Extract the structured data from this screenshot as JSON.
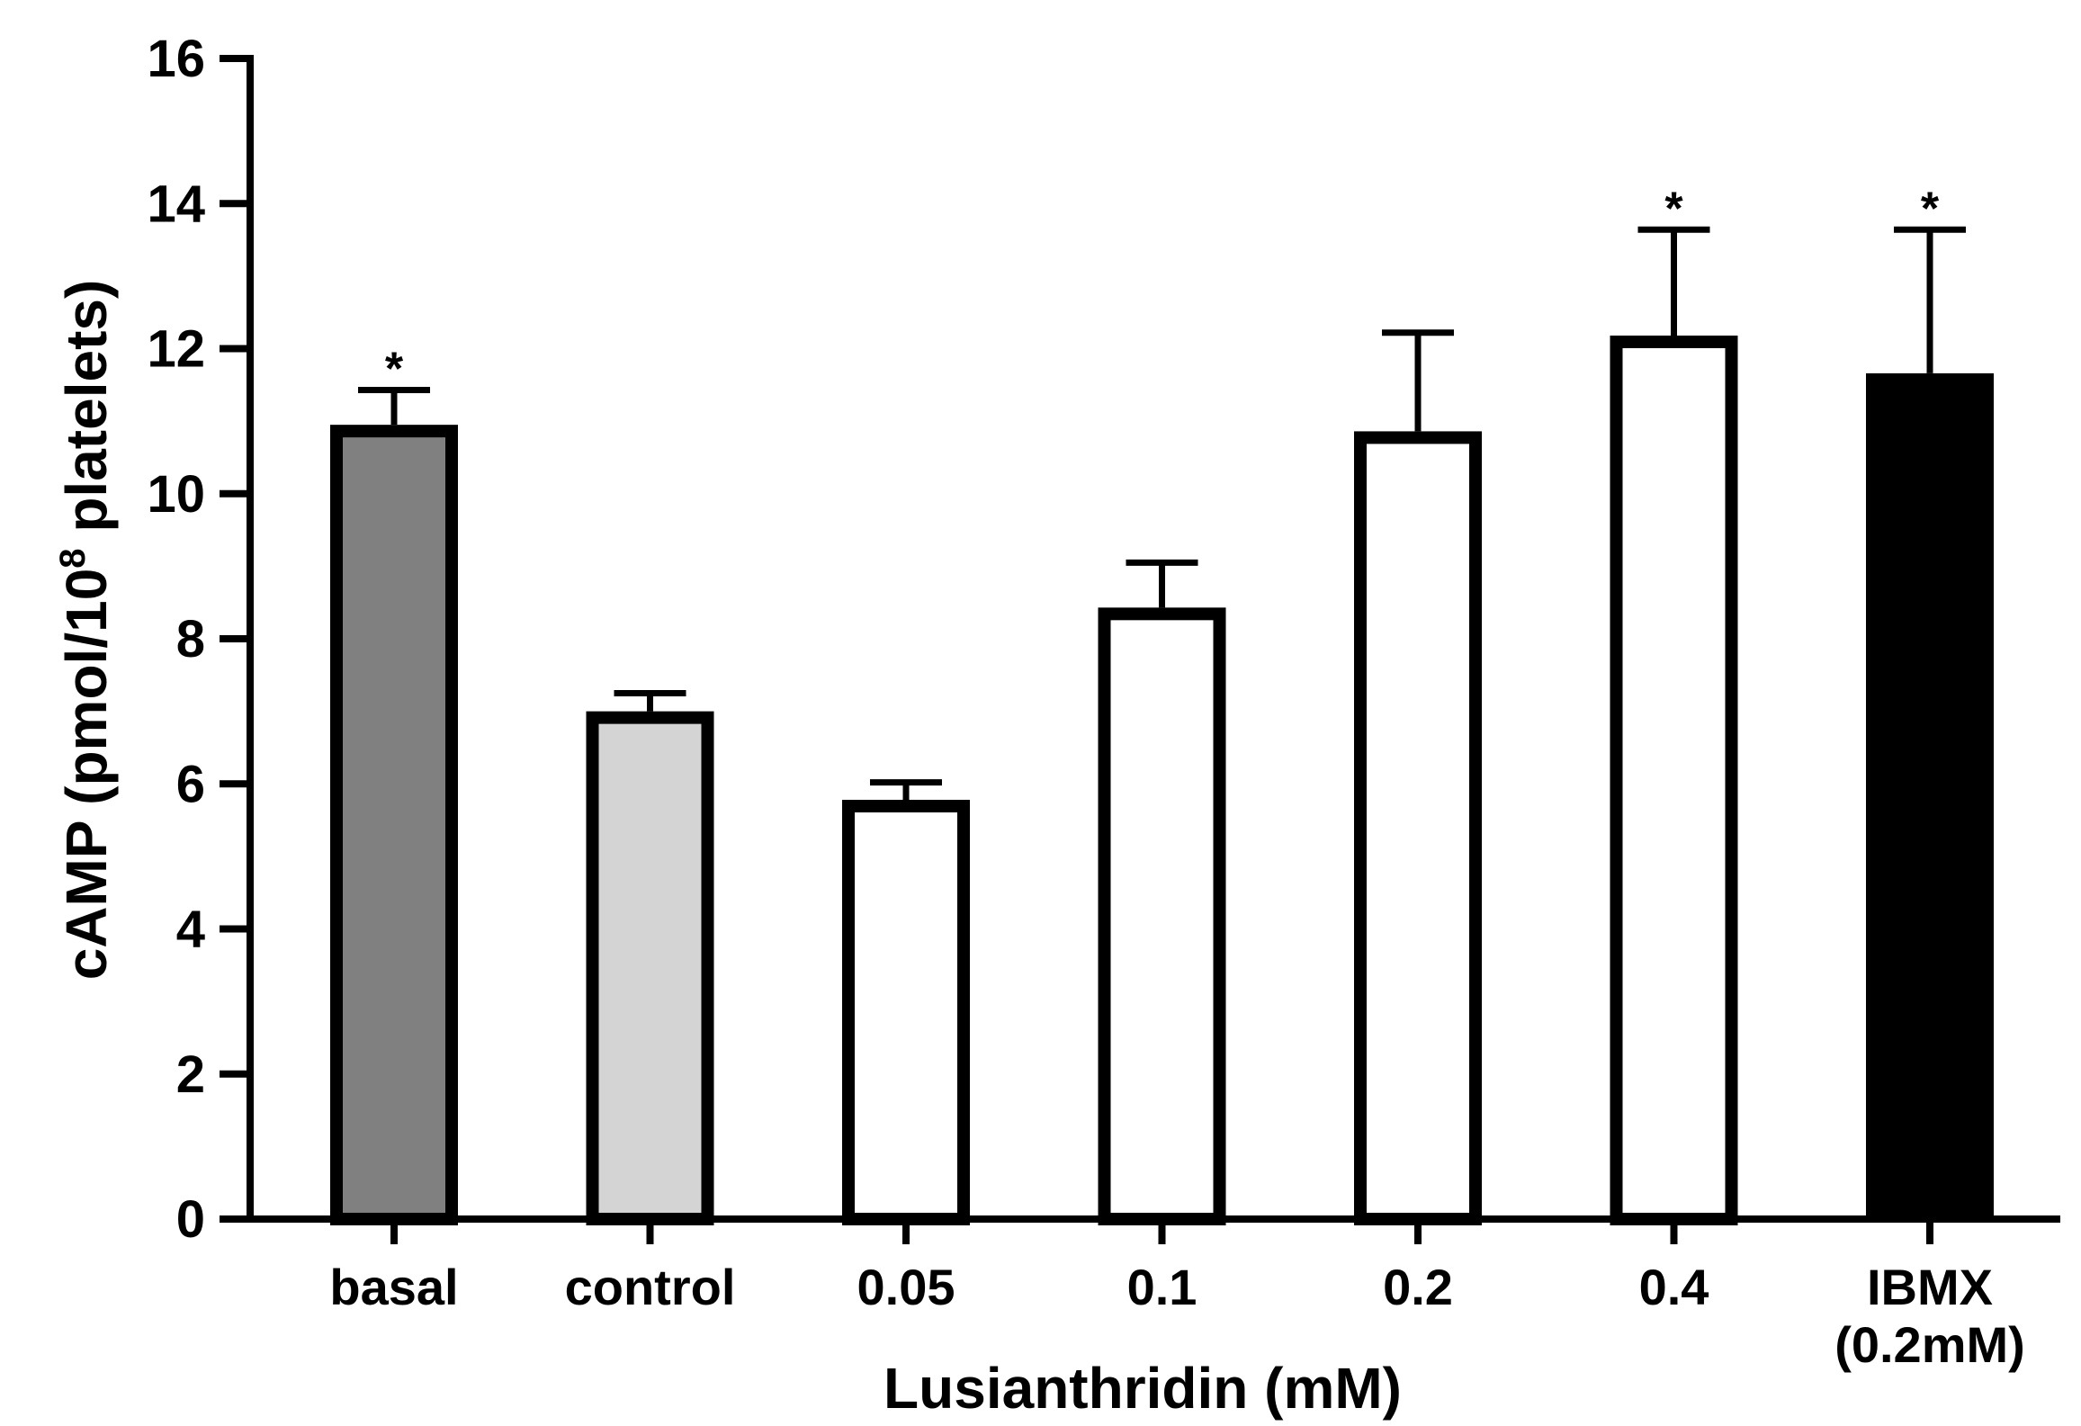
{
  "chart_data": {
    "type": "bar",
    "title": "",
    "xlabel": "Lusianthridin (mM)",
    "ylabel": {
      "prefix": "cAMP (pmol/10",
      "superscript": "8",
      "suffix": " platelets)"
    },
    "ylim": [
      0,
      16
    ],
    "yticks": [
      "0",
      "2",
      "4",
      "6",
      "8",
      "10",
      "12",
      "14",
      "16"
    ],
    "categories": [
      [
        "basal"
      ],
      [
        "control"
      ],
      [
        "0.05"
      ],
      [
        "0.1"
      ],
      [
        "0.2"
      ],
      [
        "0.4"
      ],
      [
        "IBMX",
        "(0.2mM)"
      ]
    ],
    "values": [
      10.95,
      7.0,
      5.78,
      8.43,
      10.86,
      12.18,
      11.66
    ],
    "errors": [
      0.48,
      0.25,
      0.24,
      0.62,
      1.36,
      1.46,
      1.98
    ],
    "significance": [
      "*",
      "",
      "",
      "",
      "",
      "*",
      "*"
    ],
    "bar_fills": [
      "#808080",
      "#d4d4d4",
      "#ffffff",
      "#ffffff",
      "#ffffff",
      "#ffffff",
      "#000000"
    ],
    "grid": false,
    "legend": "none"
  }
}
